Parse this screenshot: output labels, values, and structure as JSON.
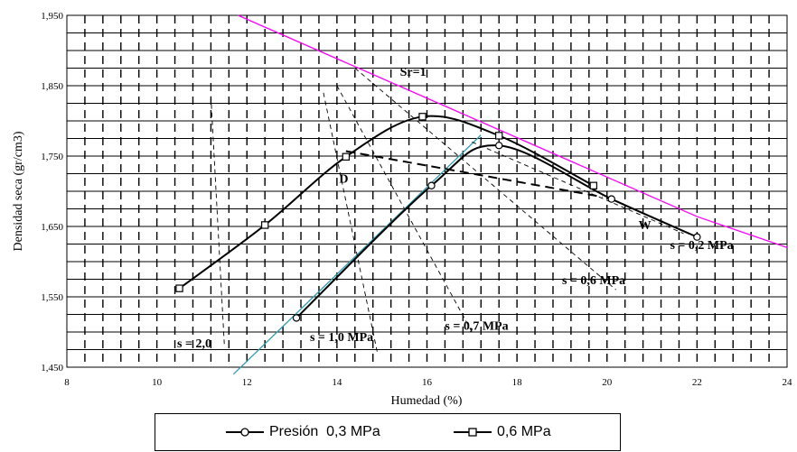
{
  "chart_data": {
    "type": "line",
    "title": "",
    "xlabel": "Humedad (%)",
    "ylabel": "Densidad seca (gr/cm3)",
    "xlim": [
      8,
      24
    ],
    "ylim": [
      1.45,
      1.95
    ],
    "x_ticks": [
      "8",
      "10",
      "12",
      "14",
      "16",
      "18",
      "20",
      "22",
      "24"
    ],
    "y_ticks": [
      "1,450",
      "1,550",
      "1,650",
      "1,750",
      "1,850",
      "1,950"
    ],
    "grid": "dashed vertical + solid horizontal",
    "legend_position": "bottom",
    "series": [
      {
        "name": "Presión  0,3 MPa",
        "marker": "circle",
        "x": [
          13.1,
          16.1,
          17.6,
          20.1,
          22.0
        ],
        "y": [
          1.52,
          1.708,
          1.765,
          1.689,
          1.635
        ]
      },
      {
        "name": "0,6 MPa",
        "marker": "square",
        "x": [
          10.5,
          12.4,
          14.2,
          15.9,
          17.6,
          19.7
        ],
        "y": [
          1.562,
          1.652,
          1.749,
          1.806,
          1.779,
          1.708
        ]
      }
    ],
    "reference_lines": [
      {
        "name": "Sr=1",
        "color": "#ff00ff",
        "x": [
          11.8,
          22.0,
          24.0
        ],
        "y": [
          1.95,
          1.664,
          1.62
        ]
      },
      {
        "name": "blue-fit",
        "color": "#2e9cb0",
        "x": [
          11.7,
          17.2
        ],
        "y": [
          1.44,
          1.78
        ]
      },
      {
        "name": "s = 2,0",
        "style": "dashed",
        "x": [
          11.2,
          11.5
        ],
        "y": [
          1.835,
          1.48
        ]
      },
      {
        "name": "s = 1,0 MPa",
        "style": "dashed",
        "x": [
          13.7,
          14.9
        ],
        "y": [
          1.84,
          1.47
        ]
      },
      {
        "name": "s = 0,7 MPa",
        "style": "dashed",
        "x": [
          14.0,
          17.0
        ],
        "y": [
          1.85,
          1.5
        ]
      },
      {
        "name": "s = 0,6 MPa",
        "style": "dashed",
        "x": [
          14.4,
          20.2
        ],
        "y": [
          1.875,
          1.56
        ]
      },
      {
        "name": "s = 0,2 MPa",
        "style": "dashed",
        "x": [
          17.0,
          21.7
        ],
        "y": [
          1.77,
          1.64
        ]
      },
      {
        "name": "D-W",
        "style": "dashed-bold",
        "x": [
          14.2,
          19.9
        ],
        "y": [
          1.757,
          1.692
        ]
      }
    ],
    "annotations": [
      {
        "text": "Sr=1",
        "x": 15.4,
        "y": 1.864
      },
      {
        "text": "D",
        "x": 14.05,
        "y": 1.712
      },
      {
        "text": "W",
        "x": 20.7,
        "y": 1.646
      },
      {
        "text": "s = 0,2 MPa",
        "x": 21.4,
        "y": 1.618
      },
      {
        "text": "s = 0,6 MPa",
        "x": 19.0,
        "y": 1.568
      },
      {
        "text": "s = 0,7 MPa",
        "x": 16.4,
        "y": 1.503
      },
      {
        "text": "s = 1,0 MPa",
        "x": 13.4,
        "y": 1.487
      },
      {
        "text": "s = 2,0",
        "x": 10.45,
        "y": 1.478
      }
    ]
  }
}
